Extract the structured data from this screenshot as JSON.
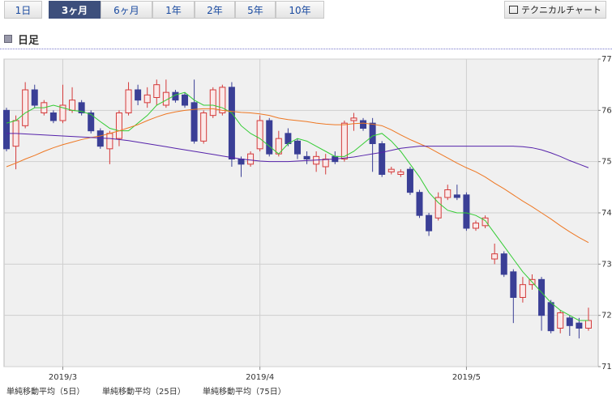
{
  "ui": {
    "tabs": [
      "1日",
      "3ヶ月",
      "6ヶ月",
      "1年",
      "2年",
      "5年",
      "10年"
    ],
    "active_tab": 1,
    "button": "テクニカルチャート",
    "section": "日足"
  },
  "chart_data": {
    "type": "candlestick",
    "categories": [
      null,
      null,
      null,
      null,
      null,
      null,
      "2019/3",
      null,
      null,
      null,
      null,
      null,
      null,
      null,
      null,
      null,
      null,
      null,
      null,
      null,
      null,
      null,
      null,
      null,
      null,
      null,
      null,
      "2019/4",
      null,
      null,
      null,
      null,
      null,
      null,
      null,
      null,
      null,
      null,
      null,
      null,
      null,
      null,
      null,
      null,
      null,
      null,
      null,
      null,
      null,
      "2019/5",
      null,
      null,
      null,
      null,
      null,
      null,
      null,
      null,
      null,
      null,
      null,
      null,
      null
    ],
    "open": [
      76.0,
      75.3,
      75.7,
      76.4,
      75.95,
      75.95,
      75.8,
      76.0,
      76.15,
      75.95,
      75.6,
      75.25,
      75.45,
      75.95,
      76.4,
      76.15,
      76.25,
      76.1,
      76.35,
      76.3,
      76.15,
      75.4,
      75.9,
      75.95,
      76.45,
      75.05,
      74.95,
      75.25,
      75.8,
      75.15,
      75.55,
      75.4,
      75.1,
      74.95,
      74.9,
      75.1,
      75.05,
      75.8,
      75.8,
      75.75,
      75.35,
      74.8,
      74.75,
      74.85,
      74.4,
      73.95,
      73.9,
      74.3,
      74.35,
      74.35,
      73.7,
      73.75,
      73.1,
      73.2,
      72.85,
      72.35,
      72.6,
      72.7,
      72.25,
      71.75,
      71.95,
      71.85,
      71.75
    ],
    "high": [
      76.05,
      75.9,
      76.55,
      76.5,
      76.2,
      76.0,
      76.5,
      76.45,
      76.2,
      76.0,
      75.65,
      75.6,
      76.0,
      76.55,
      76.5,
      76.45,
      76.6,
      76.6,
      76.4,
      76.35,
      76.6,
      76.0,
      76.45,
      76.5,
      76.55,
      75.1,
      75.2,
      75.9,
      75.85,
      75.6,
      75.65,
      75.45,
      75.2,
      75.2,
      75.15,
      75.2,
      75.8,
      75.95,
      75.85,
      75.85,
      75.4,
      74.9,
      74.85,
      74.9,
      74.45,
      74.0,
      74.4,
      74.55,
      74.55,
      74.4,
      73.85,
      73.95,
      73.4,
      73.25,
      72.9,
      72.75,
      72.8,
      72.75,
      72.3,
      72.1,
      72.0,
      71.95,
      72.15
    ],
    "low": [
      75.2,
      74.85,
      75.65,
      76.05,
      75.9,
      75.75,
      75.75,
      75.95,
      75.9,
      75.55,
      75.25,
      74.95,
      75.3,
      75.9,
      76.1,
      76.05,
      76.1,
      76.05,
      76.15,
      76.05,
      75.35,
      75.35,
      75.85,
      75.9,
      74.9,
      74.7,
      74.9,
      75.2,
      75.1,
      75.1,
      75.3,
      75.05,
      74.95,
      74.8,
      74.75,
      74.95,
      75.0,
      75.6,
      75.6,
      74.8,
      74.7,
      74.75,
      74.7,
      74.35,
      73.9,
      73.55,
      73.85,
      74.25,
      74.25,
      73.65,
      73.65,
      73.7,
      73.0,
      72.75,
      71.85,
      72.25,
      72.5,
      71.7,
      71.65,
      71.65,
      71.6,
      71.55,
      71.7
    ],
    "close": [
      75.25,
      75.8,
      76.4,
      76.1,
      76.15,
      75.8,
      76.1,
      76.2,
      75.95,
      75.6,
      75.3,
      75.55,
      75.95,
      76.4,
      76.2,
      76.3,
      76.5,
      76.35,
      76.2,
      76.1,
      75.4,
      75.95,
      76.4,
      76.45,
      75.05,
      74.95,
      75.15,
      75.8,
      75.15,
      75.45,
      75.35,
      75.15,
      75.05,
      75.1,
      75.05,
      75.0,
      75.75,
      75.85,
      75.65,
      75.35,
      74.75,
      74.85,
      74.8,
      74.4,
      73.95,
      73.65,
      74.3,
      74.45,
      74.3,
      73.7,
      73.8,
      73.9,
      73.2,
      72.8,
      72.35,
      72.6,
      72.7,
      72.0,
      71.7,
      72.05,
      71.8,
      71.75,
      71.9
    ],
    "up_color": "#d43a3a",
    "down_color": "#3a3f96",
    "series": [
      {
        "name": "単純移動平均（5日）",
        "color": "#33cc33",
        "values": [
          75.75,
          75.8,
          75.95,
          76.05,
          76.05,
          76.1,
          76.05,
          76.0,
          75.98,
          75.92,
          75.78,
          75.65,
          75.6,
          75.6,
          75.75,
          75.9,
          76.1,
          76.2,
          76.3,
          76.35,
          76.2,
          76.1,
          76.1,
          76.05,
          75.95,
          75.7,
          75.55,
          75.45,
          75.3,
          75.15,
          75.35,
          75.45,
          75.4,
          75.3,
          75.2,
          75.1,
          75.1,
          75.2,
          75.35,
          75.5,
          75.55,
          75.4,
          75.2,
          74.95,
          74.7,
          74.4,
          74.2,
          74.05,
          74.0,
          74.0,
          73.95,
          73.85,
          73.6,
          73.35,
          73.1,
          72.85,
          72.65,
          72.45,
          72.25,
          72.1,
          72.0,
          71.9,
          71.9
        ]
      },
      {
        "name": "単純移動平均（25日）",
        "color": "#ee7722",
        "values": [
          74.9,
          74.97,
          75.05,
          75.12,
          75.2,
          75.27,
          75.33,
          75.38,
          75.43,
          75.47,
          75.5,
          75.55,
          75.6,
          75.66,
          75.72,
          75.8,
          75.87,
          75.93,
          75.97,
          76.0,
          76.02,
          76.03,
          76.03,
          76.0,
          75.98,
          75.96,
          75.95,
          75.93,
          75.9,
          75.85,
          75.82,
          75.8,
          75.78,
          75.75,
          75.73,
          75.72,
          75.72,
          75.74,
          75.75,
          75.73,
          75.7,
          75.62,
          75.52,
          75.43,
          75.35,
          75.27,
          75.17,
          75.07,
          74.97,
          74.88,
          74.8,
          74.7,
          74.58,
          74.47,
          74.35,
          74.23,
          74.12,
          74.0,
          73.88,
          73.75,
          73.63,
          73.52,
          73.42
        ]
      },
      {
        "name": "単純移動平均（75日）",
        "color": "#5522aa",
        "values": [
          75.55,
          75.55,
          75.54,
          75.53,
          75.52,
          75.51,
          75.5,
          75.49,
          75.48,
          75.47,
          75.46,
          75.45,
          75.43,
          75.41,
          75.38,
          75.35,
          75.32,
          75.29,
          75.26,
          75.23,
          75.2,
          75.17,
          75.14,
          75.11,
          75.08,
          75.05,
          75.03,
          75.01,
          75.0,
          75.0,
          75.0,
          75.01,
          75.02,
          75.03,
          75.04,
          75.05,
          75.07,
          75.09,
          75.12,
          75.15,
          75.18,
          75.22,
          75.26,
          75.28,
          75.3,
          75.3,
          75.3,
          75.3,
          75.3,
          75.3,
          75.3,
          75.3,
          75.3,
          75.3,
          75.3,
          75.29,
          75.27,
          75.23,
          75.17,
          75.1,
          75.02,
          74.95,
          74.88
        ]
      }
    ],
    "ylim": [
      71,
      77
    ],
    "yticks": [
      71,
      72,
      73,
      74,
      75,
      76,
      77
    ],
    "grid": true
  }
}
